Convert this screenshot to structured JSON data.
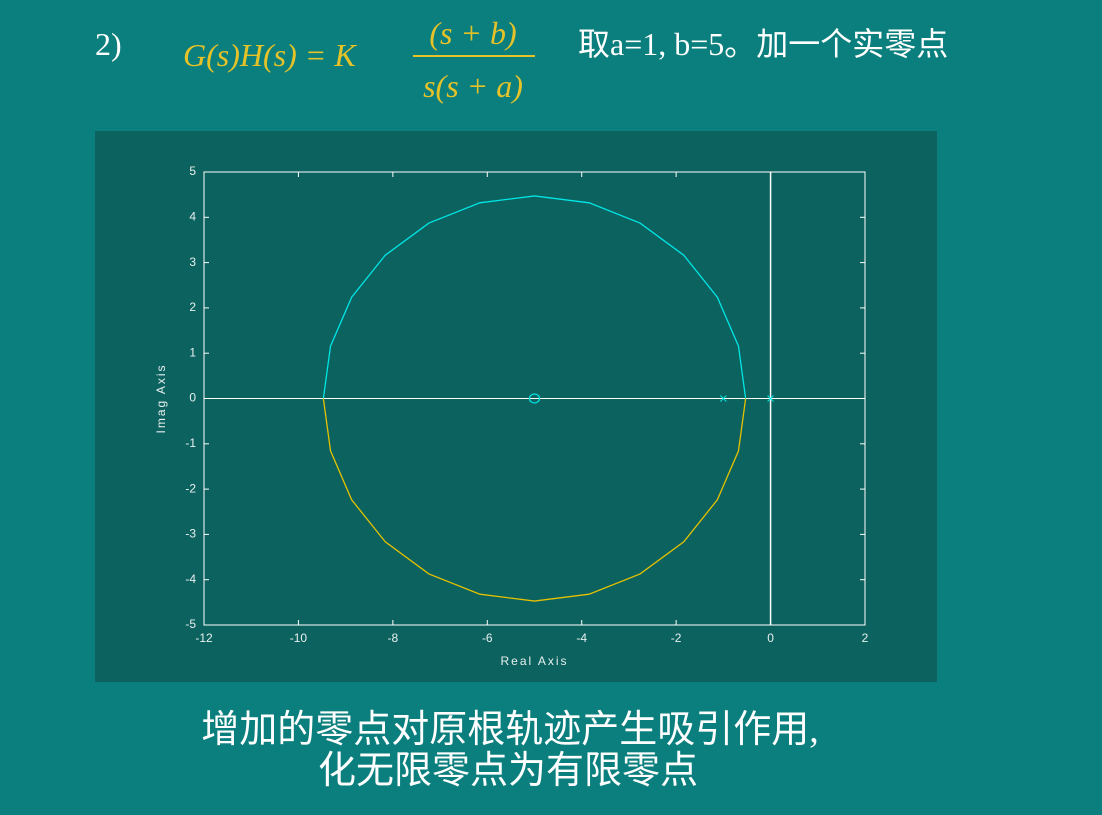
{
  "heading": {
    "number": "2)",
    "lhs": "G(s)H(s) = K",
    "numerator": "(s + b)",
    "denominator": "s(s + a)",
    "note": "取a=1, b=5。加一个实零点"
  },
  "caption": [
    "增加的零点对原根轨迹产生吸引作用,",
    "化无限零点为有限零点"
  ],
  "chart_data": {
    "type": "root-locus",
    "xlabel": "Real Axis",
    "ylabel": "Imag Axis",
    "xlim": [
      -12,
      2
    ],
    "xticks": [
      -12,
      -10,
      -8,
      -6,
      -4,
      -2,
      0,
      2
    ],
    "ylim": [
      -5,
      5
    ],
    "yticks": [
      -5,
      -4,
      -3,
      -2,
      -1,
      0,
      1,
      2,
      3,
      4,
      5
    ],
    "series": [
      {
        "color": "#00e5e5",
        "x": [
          -0.528,
          -0.68,
          -1.127,
          -1.838,
          -2.764,
          -3.843,
          -5,
          -6.157,
          -7.236,
          -8.162,
          -8.873,
          -9.32,
          -9.472
        ],
        "y": [
          0,
          1.157,
          2.236,
          3.162,
          3.873,
          4.32,
          4.472,
          4.32,
          3.873,
          3.162,
          2.236,
          1.157,
          0
        ]
      },
      {
        "color": "#e5c100",
        "x": [
          -0.528,
          -0.68,
          -1.127,
          -1.838,
          -2.764,
          -3.843,
          -5,
          -6.157,
          -7.236,
          -8.162,
          -8.873,
          -9.32,
          -9.472
        ],
        "y": [
          0,
          -1.157,
          -2.236,
          -3.162,
          -3.873,
          -4.32,
          -4.472,
          -4.32,
          -3.873,
          -3.162,
          -2.236,
          -1.157,
          0
        ]
      }
    ],
    "poles": {
      "color": "#00e5e5",
      "x": [
        0,
        -1
      ],
      "y": [
        0,
        0
      ]
    },
    "zeros": {
      "color": "#00e5e5",
      "x": [
        -5
      ],
      "y": [
        0
      ]
    }
  }
}
